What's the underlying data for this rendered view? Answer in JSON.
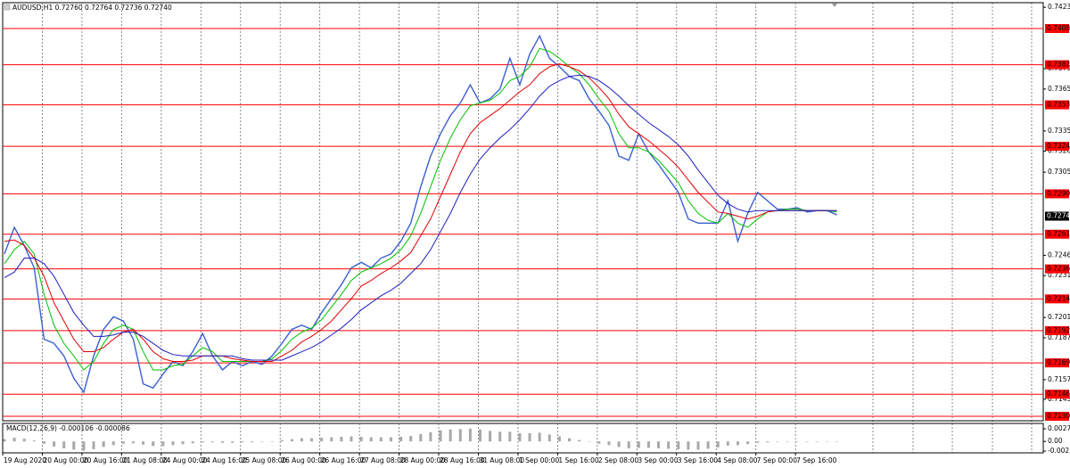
{
  "chart_data": {
    "type": "line",
    "title": "AUDUSD,H1 0.72760 0.72764 0.72736 0.72740",
    "categories": [
      "19 Aug 2020",
      null,
      null,
      null,
      "20 Aug 00:00",
      null,
      null,
      null,
      "20 Aug 16:00",
      null,
      null,
      null,
      "21 Aug 08:00",
      null,
      null,
      null,
      "24 Aug 00:00",
      null,
      null,
      null,
      "24 Aug 16:00",
      null,
      null,
      null,
      "25 Aug 08:00",
      null,
      null,
      null,
      "26 Aug 00:00",
      null,
      null,
      null,
      "26 Aug 16:00",
      null,
      null,
      null,
      "27 Aug 08:00",
      null,
      null,
      null,
      "28 Aug 00:00",
      null,
      null,
      null,
      "28 Aug 16:00",
      null,
      null,
      null,
      "31 Aug 08:00",
      null,
      null,
      null,
      "1 Sep 00:00",
      null,
      null,
      null,
      "1 Sep 16:00",
      null,
      null,
      null,
      "2 Sep 08:00",
      null,
      null,
      null,
      "3 Sep 00:00",
      null,
      null,
      null,
      "3 Sep 16:00",
      null,
      null,
      null,
      "4 Sep 08:00",
      null,
      null,
      null,
      "7 Sep 00:00",
      null,
      null,
      null,
      "7 Sep 16:00",
      null,
      null,
      null,
      null
    ],
    "series": [
      {
        "color": "#3a5fd0",
        "values": [
          0.7247,
          0.7266,
          0.7253,
          0.7237,
          0.7186,
          0.7183,
          0.7174,
          0.7158,
          0.7148,
          0.7174,
          0.7193,
          0.7202,
          0.7199,
          0.7186,
          0.7154,
          0.7151,
          0.7161,
          0.717,
          0.7167,
          0.7177,
          0.719,
          0.7174,
          0.7164,
          0.717,
          0.7167,
          0.717,
          0.7168,
          0.7174,
          0.7183,
          0.7193,
          0.7196,
          0.7193,
          0.7205,
          0.7215,
          0.7225,
          0.7237,
          0.7241,
          0.7237,
          0.7244,
          0.7247,
          0.7256,
          0.7269,
          0.7295,
          0.7317,
          0.7333,
          0.7346,
          0.7355,
          0.7368,
          0.7355,
          0.7358,
          0.7365,
          0.7387,
          0.7368,
          0.739,
          0.7403,
          0.7387,
          0.7381,
          0.7374,
          0.7371,
          0.7358,
          0.7349,
          0.7339,
          0.7317,
          0.7314,
          0.7333,
          0.732,
          0.7311,
          0.7301,
          0.7291,
          0.7272,
          0.7269,
          0.7269,
          0.7269,
          0.7285,
          0.7256,
          0.7276,
          0.7291,
          0.7285,
          0.7279,
          0.7279,
          0.728,
          0.7277,
          0.7278,
          0.7278,
          0.7275
        ]
      },
      {
        "color": "#00c000",
        "values": [
          0.724,
          0.725,
          0.7256,
          0.7247,
          0.7218,
          0.7196,
          0.7183,
          0.7174,
          0.7164,
          0.717,
          0.7183,
          0.7193,
          0.7196,
          0.7193,
          0.7177,
          0.7164,
          0.7164,
          0.7167,
          0.7168,
          0.7174,
          0.718,
          0.7177,
          0.717,
          0.717,
          0.717,
          0.717,
          0.717,
          0.7172,
          0.7178,
          0.7186,
          0.7191,
          0.7194,
          0.72,
          0.7209,
          0.7218,
          0.7228,
          0.7234,
          0.7237,
          0.724,
          0.7244,
          0.725,
          0.726,
          0.7276,
          0.7295,
          0.7314,
          0.733,
          0.7343,
          0.7353,
          0.7355,
          0.7357,
          0.7362,
          0.7371,
          0.7374,
          0.7381,
          0.7394,
          0.7392,
          0.7387,
          0.7381,
          0.7376,
          0.7368,
          0.7358,
          0.7349,
          0.7333,
          0.7323,
          0.7323,
          0.732,
          0.7314,
          0.7306,
          0.7298,
          0.7285,
          0.7276,
          0.7271,
          0.7269,
          0.7276,
          0.7269,
          0.7266,
          0.7272,
          0.7277,
          0.7278,
          0.7279,
          0.7279,
          0.7278,
          0.7278,
          0.7278,
          0.7277
        ]
      },
      {
        "color": "#e00000",
        "values": [
          0.7256,
          0.7257,
          0.7253,
          0.7244,
          0.7231,
          0.7212,
          0.7199,
          0.7186,
          0.7177,
          0.7177,
          0.718,
          0.7186,
          0.7191,
          0.7193,
          0.7186,
          0.7177,
          0.7172,
          0.717,
          0.717,
          0.7171,
          0.7174,
          0.7174,
          0.7174,
          0.7172,
          0.7171,
          0.717,
          0.717,
          0.717,
          0.7174,
          0.7178,
          0.7184,
          0.7188,
          0.7193,
          0.7199,
          0.7207,
          0.7215,
          0.7224,
          0.7228,
          0.7233,
          0.7237,
          0.7242,
          0.7248,
          0.726,
          0.7272,
          0.7288,
          0.7304,
          0.732,
          0.7333,
          0.7341,
          0.7346,
          0.7351,
          0.7357,
          0.7363,
          0.7368,
          0.7376,
          0.7381,
          0.7383,
          0.7381,
          0.7378,
          0.7373,
          0.7366,
          0.7358,
          0.7347,
          0.7338,
          0.7333,
          0.7328,
          0.7322,
          0.7316,
          0.7309,
          0.73,
          0.7291,
          0.7284,
          0.7277,
          0.7276,
          0.7274,
          0.7272,
          0.7274,
          0.7277,
          0.7278,
          0.7278,
          0.7278,
          0.7278,
          0.7278,
          0.7278,
          0.7278
        ]
      },
      {
        "color": "#2020c0",
        "values": [
          0.723,
          0.7234,
          0.7244,
          0.7244,
          0.724,
          0.7231,
          0.7218,
          0.7205,
          0.7196,
          0.7188,
          0.7188,
          0.7189,
          0.7191,
          0.7191,
          0.7188,
          0.7183,
          0.7178,
          0.7175,
          0.7174,
          0.7174,
          0.7174,
          0.7174,
          0.7174,
          0.7174,
          0.7172,
          0.7171,
          0.7171,
          0.7171,
          0.7171,
          0.7174,
          0.7177,
          0.718,
          0.7184,
          0.7189,
          0.7194,
          0.72,
          0.7207,
          0.7212,
          0.7217,
          0.7221,
          0.7226,
          0.7233,
          0.724,
          0.725,
          0.7263,
          0.7276,
          0.7291,
          0.7304,
          0.7315,
          0.7323,
          0.733,
          0.7336,
          0.7343,
          0.7351,
          0.736,
          0.7367,
          0.7371,
          0.7374,
          0.7375,
          0.7374,
          0.7371,
          0.7366,
          0.736,
          0.7353,
          0.7347,
          0.7341,
          0.7336,
          0.7331,
          0.7325,
          0.7317,
          0.7307,
          0.7298,
          0.7289,
          0.7283,
          0.7279,
          0.7277,
          0.7278,
          0.7278,
          0.7278,
          0.7278,
          0.7278,
          0.7278,
          0.7278,
          0.7278,
          0.7278
        ]
      }
    ],
    "ylim": [
      0.71276,
      0.74268
    ],
    "yticks": [
      0.74235,
      0.73795,
      {
        "value": 0.7365,
        "label": "0.73650"
      },
      {
        "value": 0.7335,
        "label": "0.73350"
      },
      0.73205,
      0.73055,
      {
        "value": 0.7246,
        "label": "0.72460"
      },
      0.72315,
      0.72015,
      {
        "value": 0.7187,
        "label": "0.71870"
      },
      {
        "value": 0.7157,
        "label": "0.71570"
      },
      {
        "value": 0.7143,
        "label": "0.71430"
      }
    ],
    "levels": [
      0.74083,
      0.73824,
      0.73537,
      {
        "value": 0.7324,
        "label": "0.73240"
      },
      {
        "value": 0.729,
        "label": "0.72900"
      },
      0.72611,
      0.72363,
      0.72148,
      0.71921,
      {
        "value": 0.7169,
        "label": "0.71690"
      },
      0.71466,
      0.71308
    ],
    "level_color": "#ff0000",
    "last_price": {
      "value": 0.7274,
      "label": "0.72740"
    },
    "grid": true,
    "indicator": {
      "type": "bar",
      "title": "MACD(12,26,9) -0.000106 -0.000086",
      "color": "#a8a8a8",
      "values": [
        0.0005,
        0.0008,
        0.0006,
        0.0002,
        -0.0005,
        -0.0011,
        -0.0015,
        -0.0018,
        -0.002,
        -0.0017,
        -0.0012,
        -0.0008,
        -0.0005,
        -0.0004,
        -0.0007,
        -0.001,
        -0.001,
        -0.0008,
        -0.0006,
        -0.0004,
        -0.0002,
        -0.0002,
        -0.0003,
        -0.0003,
        -0.0002,
        -0.0002,
        -0.0001,
        0,
        0.0003,
        0.0005,
        0.0007,
        0.0007,
        0.0008,
        0.0009,
        0.001,
        0.0011,
        0.001,
        0.0009,
        0.0009,
        0.0009,
        0.001,
        0.0012,
        0.0016,
        0.002,
        0.0024,
        0.0026,
        0.0027,
        0.0028,
        0.0026,
        0.0023,
        0.0021,
        0.0021,
        0.0018,
        0.0018,
        0.0019,
        0.0015,
        0.0011,
        0.0007,
        0.0003,
        -0.0001,
        -0.0005,
        -0.0008,
        -0.0012,
        -0.0015,
        -0.0014,
        -0.0014,
        -0.0015,
        -0.0016,
        -0.0017,
        -0.0018,
        -0.0018,
        -0.0016,
        -0.0013,
        -0.0009,
        -0.0008,
        -0.0006,
        -0.0003,
        -0.0002,
        -0.0001,
        -0.0001,
        -0.0001,
        -0.0001,
        -0.0001,
        -0.0001,
        -0.0001
      ],
      "ylim": [
        -0.002489,
        0.00392
      ],
      "yticks": [
        0.002754,
        {
          "value": 0,
          "label": "0.00"
        },
        -0.002101
      ]
    }
  }
}
